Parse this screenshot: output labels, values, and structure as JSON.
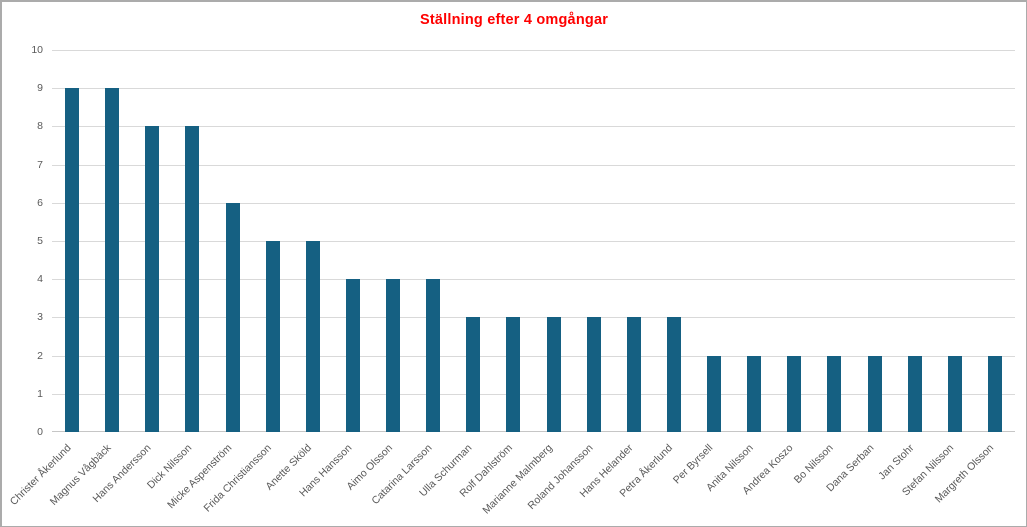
{
  "window": {
    "background": "#FFFFFF",
    "border_color": "#ABABAB"
  },
  "chart_data": {
    "type": "bar",
    "title": "Ställning efter 4 omgångar",
    "title_color": "#FF0000",
    "xlabel": "",
    "ylabel": "",
    "categories": [
      "Christer Åkerlund",
      "Magnus Vågbäck",
      "Hans Andersson",
      "Dick Nilsson",
      "Micke Aspenström",
      "Frida Christiansson",
      "Anette Sköld",
      "Hans Hansson",
      "Aimo Olsson",
      "Catarina Larsson",
      "Ulla Schurman",
      "Rolf Dahlström",
      "Marianne Malmberg",
      "Roland Johansson",
      "Hans Helander",
      "Petra Åkerlund",
      "Per Byrsell",
      "Anita Nilsson",
      "Andrea Koszo",
      "Bo Nilsson",
      "Dana Serban",
      "Jan Stohr",
      "Stefan Nilsson",
      "Margreth Olsson"
    ],
    "values": [
      9,
      9,
      8,
      8,
      6,
      5,
      5,
      4,
      4,
      4,
      3,
      3,
      3,
      3,
      3,
      3,
      2,
      2,
      2,
      2,
      2,
      2,
      2,
      2
    ],
    "ylim": [
      0,
      10
    ],
    "yticks": [
      0,
      1,
      2,
      3,
      4,
      5,
      6,
      7,
      8,
      9,
      10
    ],
    "grid": true,
    "legend": "none",
    "bar_color": "#156082",
    "axis_text_color": "#595959",
    "gridline_color": "#D9D9D9",
    "axisline_color": "#C6C6C6"
  }
}
